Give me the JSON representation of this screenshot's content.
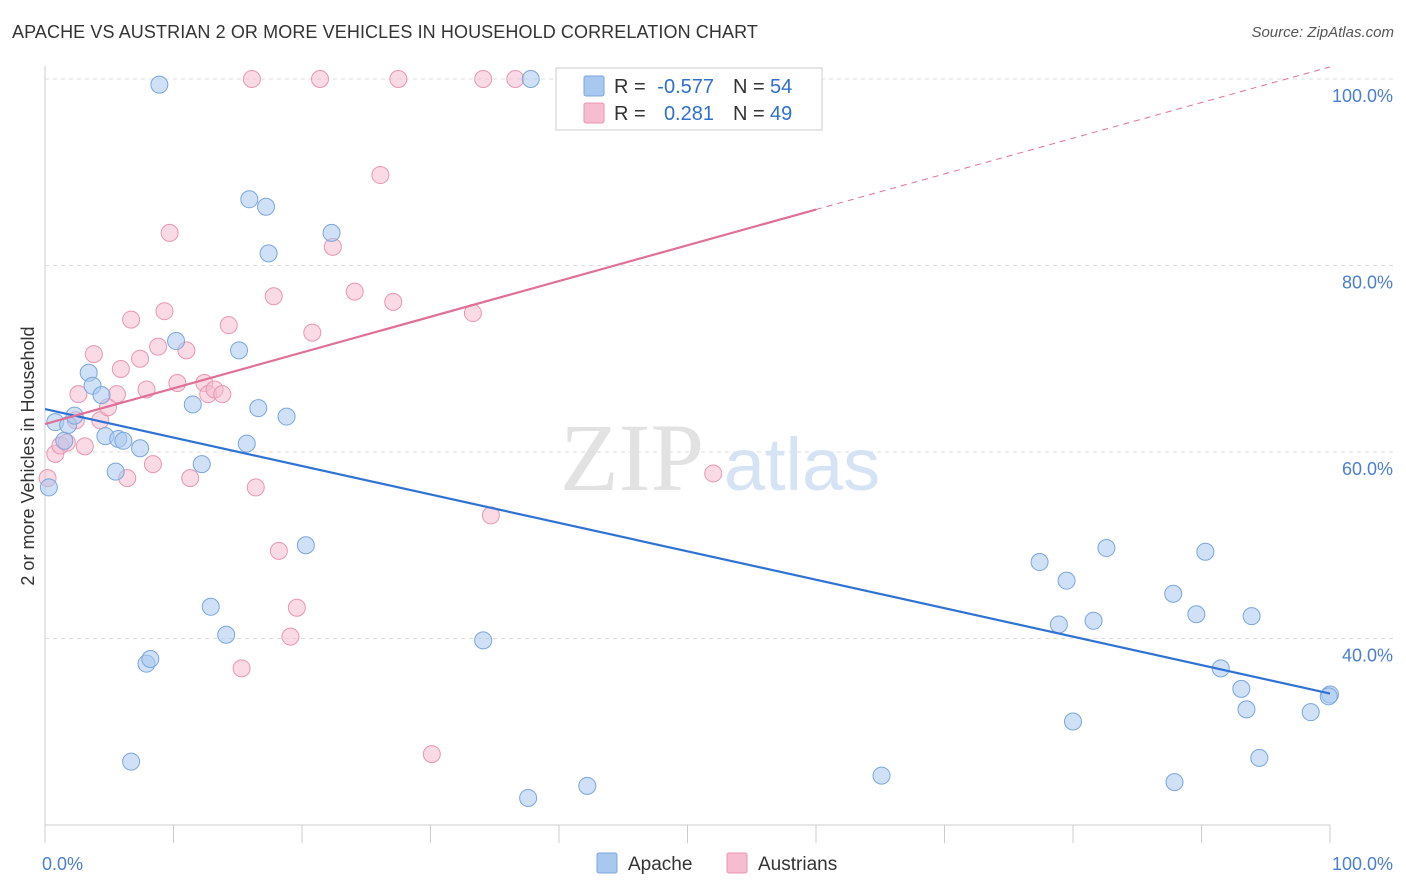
{
  "title": "APACHE VS AUSTRIAN 2 OR MORE VEHICLES IN HOUSEHOLD CORRELATION CHART",
  "source": "Source: ZipAtlas.com",
  "watermark": {
    "zip": "ZIP",
    "atlas": "atlas"
  },
  "colors": {
    "apache_fill": "#a9c8f0",
    "apache_stroke": "#7aa6dc",
    "apache_line": "#2f72d4",
    "austrians_fill": "#f6bccf",
    "austrians_stroke": "#e996b3",
    "austrians_line": "#e07098",
    "tick_label": "#4a7fd0",
    "grid": "#dddddd"
  },
  "legend": {
    "apache": {
      "r_label": "R =",
      "r_value": "-0.577",
      "n_label": "N =",
      "n_value": "54"
    },
    "austrians": {
      "r_label": "R =",
      "r_value": "0.281",
      "n_label": "N =",
      "n_value": "49"
    }
  },
  "bottom_legend": [
    "Apache",
    "Austrians"
  ],
  "chart_data": {
    "type": "scatter",
    "title": "APACHE VS AUSTRIAN 2 OR MORE VEHICLES IN HOUSEHOLD CORRELATION CHART",
    "xlabel": "",
    "ylabel": "2 or more Vehicles in Household",
    "xlim": [
      0,
      100
    ],
    "ylim": [
      20,
      100
    ],
    "x_tick_labels": [
      "0.0%",
      "100.0%"
    ],
    "y_ticks": [
      40,
      60,
      80,
      100
    ],
    "y_tick_labels": [
      "40.0%",
      "60.0%",
      "80.0%",
      "100.0%"
    ],
    "grid": true,
    "legend_position": "top-center",
    "series": [
      {
        "name": "Apache",
        "r": -0.577,
        "n": 54,
        "trend": {
          "x": [
            0,
            100
          ],
          "y": [
            64.6,
            34.1
          ]
        },
        "points": [
          [
            0.3,
            56.2
          ],
          [
            0.8,
            63.2
          ],
          [
            1.5,
            61.2
          ],
          [
            1.8,
            62.9
          ],
          [
            2.3,
            63.9
          ],
          [
            3.4,
            68.5
          ],
          [
            3.7,
            67.1
          ],
          [
            4.4,
            66.1
          ],
          [
            4.7,
            61.7
          ],
          [
            5.7,
            61.4
          ],
          [
            5.5,
            57.9
          ],
          [
            6.1,
            61.2
          ],
          [
            7.4,
            60.4
          ],
          [
            7.9,
            37.3
          ],
          [
            8.2,
            37.8
          ],
          [
            6.7,
            26.8
          ],
          [
            8.9,
            99.4
          ],
          [
            10.2,
            71.9
          ],
          [
            11.5,
            65.1
          ],
          [
            12.2,
            58.7
          ],
          [
            12.9,
            43.4
          ],
          [
            14.1,
            40.4
          ],
          [
            15.1,
            70.9
          ],
          [
            15.7,
            60.9
          ],
          [
            15.9,
            87.1
          ],
          [
            16.6,
            64.7
          ],
          [
            17.2,
            86.3
          ],
          [
            17.4,
            81.3
          ],
          [
            18.8,
            63.8
          ],
          [
            20.3,
            50.0
          ],
          [
            22.3,
            83.5
          ],
          [
            34.1,
            39.8
          ],
          [
            37.6,
            22.9
          ],
          [
            37.8,
            100.0
          ],
          [
            42.2,
            24.2
          ],
          [
            65.1,
            25.3
          ],
          [
            77.4,
            48.2
          ],
          [
            78.9,
            41.5
          ],
          [
            79.5,
            46.2
          ],
          [
            80.0,
            31.1
          ],
          [
            81.6,
            41.9
          ],
          [
            82.6,
            49.7
          ],
          [
            87.8,
            44.8
          ],
          [
            87.9,
            24.6
          ],
          [
            89.6,
            42.6
          ],
          [
            90.3,
            49.3
          ],
          [
            91.5,
            36.8
          ],
          [
            93.1,
            34.6
          ],
          [
            93.5,
            32.4
          ],
          [
            93.9,
            42.4
          ],
          [
            94.5,
            27.2
          ],
          [
            98.5,
            32.1
          ],
          [
            100.0,
            34.0
          ],
          [
            99.9,
            33.8
          ]
        ]
      },
      {
        "name": "Austrians",
        "r": 0.281,
        "n": 49,
        "trend": {
          "x": [
            0,
            60
          ],
          "y": [
            63.0,
            86.0
          ],
          "dashed_to": {
            "x": [
              60,
              100
            ],
            "y": [
              86.0,
              101.3
            ]
          }
        },
        "points": [
          [
            0.2,
            57.2
          ],
          [
            0.8,
            59.8
          ],
          [
            1.2,
            60.7
          ],
          [
            1.7,
            61.0
          ],
          [
            2.4,
            63.4
          ],
          [
            2.6,
            66.2
          ],
          [
            3.1,
            60.6
          ],
          [
            3.8,
            70.5
          ],
          [
            4.3,
            63.4
          ],
          [
            4.9,
            64.8
          ],
          [
            5.6,
            66.2
          ],
          [
            5.9,
            68.9
          ],
          [
            6.4,
            57.2
          ],
          [
            6.7,
            74.2
          ],
          [
            7.4,
            70.0
          ],
          [
            7.9,
            66.7
          ],
          [
            8.4,
            58.7
          ],
          [
            8.8,
            71.3
          ],
          [
            9.3,
            75.1
          ],
          [
            9.7,
            83.5
          ],
          [
            10.3,
            67.4
          ],
          [
            11.0,
            70.9
          ],
          [
            11.3,
            57.2
          ],
          [
            12.4,
            67.4
          ],
          [
            12.7,
            66.2
          ],
          [
            13.2,
            66.7
          ],
          [
            13.8,
            66.2
          ],
          [
            14.3,
            73.6
          ],
          [
            15.3,
            36.8
          ],
          [
            16.1,
            100.0
          ],
          [
            16.4,
            56.2
          ],
          [
            17.8,
            76.7
          ],
          [
            18.2,
            49.4
          ],
          [
            19.1,
            40.2
          ],
          [
            19.6,
            43.3
          ],
          [
            20.8,
            72.8
          ],
          [
            21.4,
            100.0
          ],
          [
            22.4,
            82.0
          ],
          [
            24.1,
            77.2
          ],
          [
            26.1,
            89.7
          ],
          [
            27.1,
            76.1
          ],
          [
            27.5,
            100.0
          ],
          [
            30.1,
            27.6
          ],
          [
            33.3,
            74.9
          ],
          [
            34.1,
            100.0
          ],
          [
            34.7,
            53.2
          ],
          [
            36.6,
            100.0
          ],
          [
            41.6,
            100.0
          ],
          [
            52.0,
            57.7
          ]
        ]
      }
    ]
  }
}
